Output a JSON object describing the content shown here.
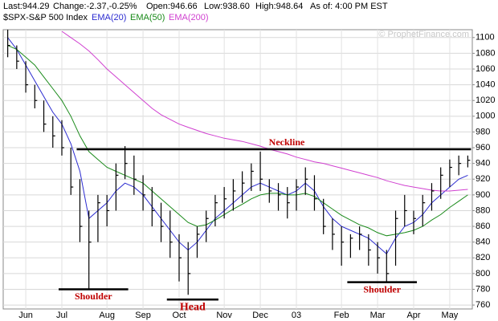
{
  "chart_data": {
    "type": "ohlc",
    "header": [
      "Last:944.29",
      "Change:-2.37,-0.25%",
      "Open:946.66",
      "Low:938.60",
      "High:948.64",
      "As of: 4:00 PM EST"
    ],
    "watermark": "© ProphetFinance.com",
    "categories": [
      null,
      null,
      "Jun",
      null,
      null,
      null,
      "Jul",
      null,
      null,
      null,
      null,
      "Aug",
      null,
      null,
      null,
      "Sep",
      null,
      null,
      null,
      "Oct",
      null,
      null,
      null,
      null,
      "Nov",
      null,
      null,
      null,
      "Dec",
      null,
      null,
      null,
      "03",
      null,
      null,
      null,
      null,
      "Feb",
      null,
      null,
      null,
      "Mar",
      null,
      null,
      null,
      "Apr",
      null,
      null,
      null,
      "May",
      null,
      null
    ],
    "series": [
      {
        "name": "$SPX-S&P 500 Index",
        "color": "#000000",
        "high": [
          1110,
          1090,
          1070,
          1040,
          1020,
          1000,
          995,
          960,
          920,
          880,
          900,
          900,
          940,
          962,
          950,
          925,
          910,
          890,
          880,
          850,
          840,
          860,
          880,
          900,
          910,
          920,
          930,
          940,
          955,
          920,
          915,
          910,
          920,
          935,
          925,
          895,
          870,
          860,
          850,
          860,
          850,
          840,
          830,
          880,
          900,
          880,
          900,
          915,
          935,
          945,
          950,
          950
        ],
        "low": [
          1075,
          1060,
          1030,
          1010,
          980,
          960,
          950,
          900,
          840,
          780,
          840,
          860,
          880,
          920,
          900,
          880,
          860,
          840,
          820,
          790,
          773,
          820,
          840,
          860,
          870,
          880,
          890,
          905,
          905,
          890,
          880,
          870,
          880,
          900,
          880,
          850,
          830,
          810,
          820,
          830,
          810,
          800,
          790,
          810,
          860,
          850,
          860,
          880,
          895,
          910,
          925,
          935
        ],
        "close": [
          1090,
          1070,
          1040,
          1020,
          990,
          975,
          960,
          910,
          860,
          840,
          890,
          880,
          925,
          940,
          920,
          900,
          880,
          860,
          840,
          820,
          800,
          850,
          870,
          890,
          895,
          905,
          915,
          930,
          920,
          905,
          900,
          890,
          910,
          920,
          895,
          860,
          850,
          840,
          845,
          850,
          830,
          820,
          800,
          870,
          880,
          870,
          890,
          905,
          925,
          935,
          940,
          944
        ]
      },
      {
        "name": "EMA(20)",
        "color": "#2b2bd0",
        "values": [
          1100,
          1085,
          1065,
          1045,
          1025,
          1005,
          990,
          965,
          930,
          870,
          880,
          890,
          905,
          915,
          910,
          900,
          885,
          870,
          855,
          840,
          830,
          840,
          855,
          870,
          880,
          890,
          900,
          910,
          915,
          910,
          905,
          900,
          905,
          915,
          905,
          885,
          870,
          860,
          855,
          850,
          845,
          835,
          825,
          845,
          860,
          865,
          875,
          890,
          900,
          910,
          920,
          925
        ]
      },
      {
        "name": "EMA(50)",
        "color": "#1a8a1a",
        "values": [
          1090,
          1085,
          1075,
          1065,
          1050,
          1035,
          1020,
          1000,
          975,
          955,
          945,
          935,
          930,
          925,
          920,
          915,
          905,
          895,
          885,
          875,
          865,
          860,
          862,
          868,
          875,
          882,
          888,
          895,
          900,
          902,
          902,
          900,
          900,
          902,
          898,
          890,
          882,
          874,
          868,
          862,
          858,
          852,
          848,
          850,
          852,
          855,
          860,
          868,
          875,
          884,
          892,
          900
        ]
      },
      {
        "name": "EMA(200)",
        "color": "#d040d0",
        "values": [
          null,
          null,
          null,
          null,
          null,
          null,
          1108,
          1100,
          1092,
          1083,
          1072,
          1060,
          1050,
          1040,
          1030,
          1020,
          1010,
          1002,
          996,
          990,
          986,
          982,
          978,
          975,
          972,
          970,
          968,
          965,
          962,
          958,
          955,
          952,
          948,
          945,
          942,
          940,
          937,
          934,
          931,
          928,
          925,
          922,
          918,
          915,
          912,
          910,
          908,
          906,
          905,
          905,
          906,
          907
        ]
      }
    ],
    "annotations": [
      {
        "text": "Neckline",
        "value": 958
      },
      {
        "text": "Shoulder",
        "value": 780
      },
      {
        "text": "Head",
        "value": 767
      },
      {
        "text": "Shoulder",
        "value": 789
      }
    ],
    "ylim": [
      755,
      1110
    ],
    "yticks": [
      760,
      780,
      800,
      820,
      840,
      860,
      880,
      900,
      920,
      940,
      960,
      980,
      1000,
      1020,
      1040,
      1060,
      1080,
      1100
    ],
    "grid": true
  }
}
